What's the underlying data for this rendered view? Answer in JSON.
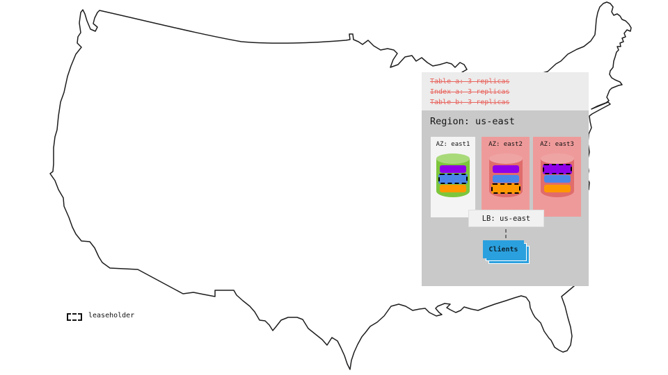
{
  "map": {
    "name": "United States outline"
  },
  "annotations": {
    "struck_items": [
      "Table a: 3 replicas",
      "Index a: 3 replicas",
      "Table b: 3 replicas"
    ]
  },
  "region": {
    "title": "Region: us-east",
    "zones": [
      {
        "label": "AZ: east1",
        "cylinder": "green",
        "replicas": [
          {
            "color": "purple",
            "leaseholder": false
          },
          {
            "color": "blue",
            "leaseholder": true
          },
          {
            "color": "orange",
            "leaseholder": false
          }
        ]
      },
      {
        "label": "AZ: east2",
        "cylinder": "red",
        "replicas": [
          {
            "color": "purple",
            "leaseholder": false
          },
          {
            "color": "blue",
            "leaseholder": false
          },
          {
            "color": "orange",
            "leaseholder": true
          }
        ]
      },
      {
        "label": "AZ: east3",
        "cylinder": "red",
        "replicas": [
          {
            "color": "purple",
            "leaseholder": true
          },
          {
            "color": "blue",
            "leaseholder": false
          },
          {
            "color": "orange",
            "leaseholder": false
          }
        ]
      }
    ],
    "load_balancer": {
      "label": "LB: us-east"
    },
    "clients": {
      "label": "Clients"
    }
  },
  "legend": {
    "label": "leaseholder"
  },
  "colors": {
    "purple": "#8f00e8",
    "blue": "#4a86e8",
    "orange": "#ff9800",
    "cyl_green": "#7dc63c",
    "cyl_green_top": "#a9da7a",
    "cyl_red": "#e06c6c",
    "cyl_red_top": "#efa4a4",
    "zone_pink": "#ef9a9a",
    "zone_light": "#f4f4f4",
    "clients_blue": "#2ba0de",
    "struck_red": "#e8655f",
    "panel_light": "#ececec",
    "panel_gray": "#c9c9c9"
  }
}
